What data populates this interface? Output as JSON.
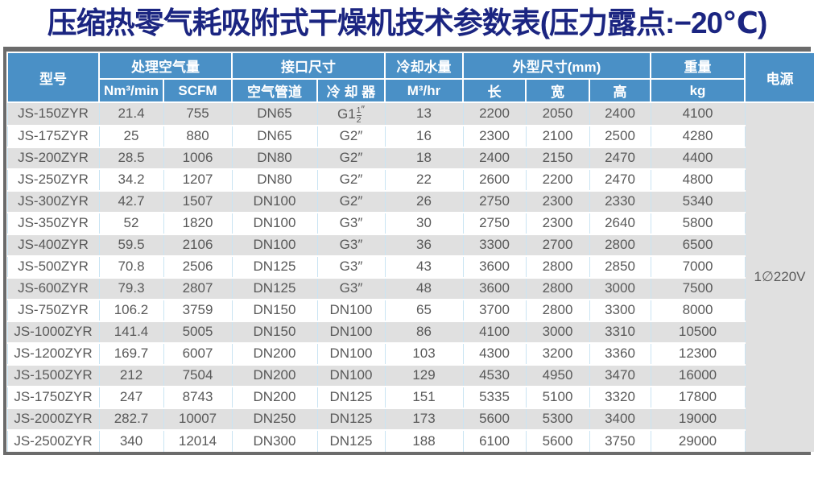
{
  "title": "压缩热零气耗吸附式干燥机技术参数表(压力露点:−20℃)",
  "colors": {
    "title_navy": "#1b2581",
    "header_blue": "#4a90c6",
    "row_alt_gray": "#e0e0e0",
    "frame_gray": "#6b6b6b",
    "body_text": "#595959",
    "grid_light_blue": "#c9e4f3"
  },
  "table": {
    "headers": {
      "model": "型号",
      "air_volume": "处理空气量",
      "air_volume_units": [
        "Nm³/min",
        "SCFM"
      ],
      "interface": "接口尺寸",
      "interface_subs": [
        "空气管道",
        "冷 却 器"
      ],
      "cooling_water": "冷却水量",
      "cooling_water_unit": "M³/hr",
      "dimensions": "外型尺寸(mm)",
      "dimensions_subs": [
        "长",
        "宽",
        "高"
      ],
      "weight": "重量",
      "weight_unit": "kg",
      "power": "电源"
    },
    "power_value": "1∅220V",
    "rows": [
      [
        "JS-150ZYR",
        "21.4",
        "755",
        "DN65",
        "G1-1/2″",
        "13",
        "2200",
        "2050",
        "2400",
        "4100"
      ],
      [
        "JS-175ZYR",
        "25",
        "880",
        "DN65",
        "G2″",
        "16",
        "2300",
        "2100",
        "2500",
        "4280"
      ],
      [
        "JS-200ZYR",
        "28.5",
        "1006",
        "DN80",
        "G2″",
        "18",
        "2400",
        "2150",
        "2470",
        "4400"
      ],
      [
        "JS-250ZYR",
        "34.2",
        "1207",
        "DN80",
        "G2″",
        "22",
        "2600",
        "2200",
        "2470",
        "4800"
      ],
      [
        "JS-300ZYR",
        "42.7",
        "1507",
        "DN100",
        "G2″",
        "26",
        "2750",
        "2300",
        "2330",
        "5340"
      ],
      [
        "JS-350ZYR",
        "52",
        "1820",
        "DN100",
        "G3″",
        "30",
        "2750",
        "2300",
        "2640",
        "5800"
      ],
      [
        "JS-400ZYR",
        "59.5",
        "2106",
        "DN100",
        "G3″",
        "36",
        "3300",
        "2700",
        "2800",
        "6500"
      ],
      [
        "JS-500ZYR",
        "70.8",
        "2506",
        "DN125",
        "G3″",
        "43",
        "3600",
        "2800",
        "2850",
        "7000"
      ],
      [
        "JS-600ZYR",
        "79.3",
        "2807",
        "DN125",
        "G3″",
        "48",
        "3600",
        "2800",
        "3000",
        "7500"
      ],
      [
        "JS-750ZYR",
        "106.2",
        "3759",
        "DN150",
        "DN100",
        "65",
        "3700",
        "2800",
        "3300",
        "8000"
      ],
      [
        "JS-1000ZYR",
        "141.4",
        "5005",
        "DN150",
        "DN100",
        "86",
        "4100",
        "3000",
        "3310",
        "10500"
      ],
      [
        "JS-1200ZYR",
        "169.7",
        "6007",
        "DN200",
        "DN100",
        "103",
        "4300",
        "3200",
        "3360",
        "12300"
      ],
      [
        "JS-1500ZYR",
        "212",
        "7504",
        "DN200",
        "DN100",
        "129",
        "4530",
        "4950",
        "3470",
        "16000"
      ],
      [
        "JS-1750ZYR",
        "247",
        "8743",
        "DN200",
        "DN125",
        "151",
        "5335",
        "5100",
        "3320",
        "17800"
      ],
      [
        "JS-2000ZYR",
        "282.7",
        "10007",
        "DN250",
        "DN125",
        "173",
        "5600",
        "5300",
        "3400",
        "19000"
      ],
      [
        "JS-2500ZYR",
        "340",
        "12014",
        "DN300",
        "DN125",
        "188",
        "6100",
        "5600",
        "3750",
        "29000"
      ]
    ]
  }
}
